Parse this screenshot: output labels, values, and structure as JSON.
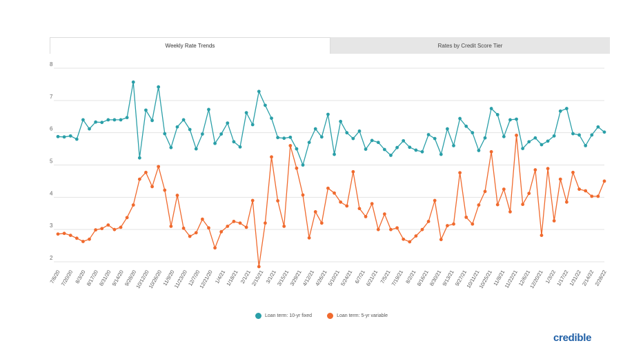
{
  "tabs": [
    {
      "label": "Weekly Rate Trends",
      "active": true
    },
    {
      "label": "Rates by Credit Score Tier",
      "active": false
    }
  ],
  "brand": "credible",
  "chart_data": {
    "type": "line",
    "title": "Weekly Rate Trends",
    "xlabel": "",
    "ylabel": "",
    "ylim": [
      2,
      8
    ],
    "yticks": [
      2,
      3,
      4,
      5,
      6,
      7,
      8
    ],
    "grid": true,
    "legend_position": "bottom-center",
    "xtick_labels": [
      "7/6/20",
      "7/20/20",
      "8/3/20",
      "8/17/20",
      "8/31/20",
      "9/14/20",
      "9/28/20",
      "10/12/20",
      "10/26/20",
      "11/9/20",
      "11/23/20",
      "12/7/20",
      "12/21/20",
      "1/4/21",
      "1/18/21",
      "2/1/21",
      "2/15/21",
      "3/1/21",
      "3/15/21",
      "3/29/21",
      "4/12/21",
      "4/26/21",
      "5/10/21",
      "5/24/21",
      "6/7/21",
      "6/21/21",
      "7/5/21",
      "7/19/21",
      "8/2/21",
      "8/16/21",
      "8/30/21",
      "9/13/21",
      "9/27/21",
      "10/11/21",
      "10/25/21",
      "11/8/21",
      "11/22/21",
      "12/6/21",
      "12/20/21",
      "1/3/22",
      "1/17/22",
      "1/31/22",
      "2/14/22",
      "2/28/22"
    ],
    "series": [
      {
        "name": "Loan term: 10-yr fixed",
        "color": "#2a9fa8",
        "values": [
          5.88,
          5.87,
          5.9,
          5.8,
          6.4,
          6.12,
          6.33,
          6.32,
          6.4,
          6.4,
          6.4,
          6.47,
          7.57,
          5.22,
          6.7,
          6.38,
          7.42,
          5.97,
          5.54,
          6.18,
          6.4,
          6.1,
          5.5,
          5.96,
          6.72,
          5.67,
          5.96,
          6.3,
          5.72,
          5.56,
          6.62,
          6.25,
          7.28,
          6.85,
          6.45,
          5.85,
          5.83,
          5.86,
          5.5,
          5.0,
          5.7,
          6.12,
          5.87,
          6.57,
          5.33,
          6.35,
          6.0,
          5.82,
          6.05,
          5.49,
          5.76,
          5.7,
          5.48,
          5.3,
          5.54,
          5.75,
          5.55,
          5.46,
          5.41,
          5.94,
          5.82,
          5.33,
          6.12,
          5.6,
          6.44,
          6.2,
          6.0,
          5.45,
          5.84,
          6.75,
          6.56,
          5.88,
          6.4,
          6.42,
          5.51,
          5.72,
          5.84,
          5.63,
          5.74,
          5.9,
          6.67,
          6.75,
          5.97,
          5.93,
          5.6,
          5.93,
          6.18,
          6.02
        ]
      },
      {
        "name": "Loan term: 5-yr variable",
        "color": "#f06a2e",
        "values": [
          2.86,
          2.88,
          2.82,
          2.73,
          2.63,
          2.7,
          2.99,
          3.03,
          3.14,
          3.0,
          3.07,
          3.37,
          3.76,
          4.56,
          4.77,
          4.33,
          4.95,
          4.22,
          3.1,
          4.06,
          3.04,
          2.79,
          2.9,
          3.32,
          3.05,
          2.43,
          2.93,
          3.1,
          3.25,
          3.2,
          3.07,
          3.9,
          1.85,
          3.2,
          5.25,
          3.89,
          3.1,
          5.6,
          4.9,
          4.07,
          2.74,
          3.55,
          3.2,
          4.28,
          4.13,
          3.85,
          3.73,
          4.79,
          3.65,
          3.4,
          3.8,
          3.0,
          3.48,
          3.0,
          3.05,
          2.7,
          2.62,
          2.8,
          3.0,
          3.25,
          3.9,
          2.69,
          3.12,
          3.17,
          4.76,
          3.38,
          3.17,
          3.76,
          4.18,
          5.41,
          3.77,
          4.25,
          3.55,
          5.92,
          3.78,
          4.12,
          4.85,
          2.82,
          4.89,
          3.27,
          4.56,
          3.85,
          4.77,
          4.25,
          4.2,
          4.03,
          4.03,
          4.5
        ]
      }
    ]
  }
}
